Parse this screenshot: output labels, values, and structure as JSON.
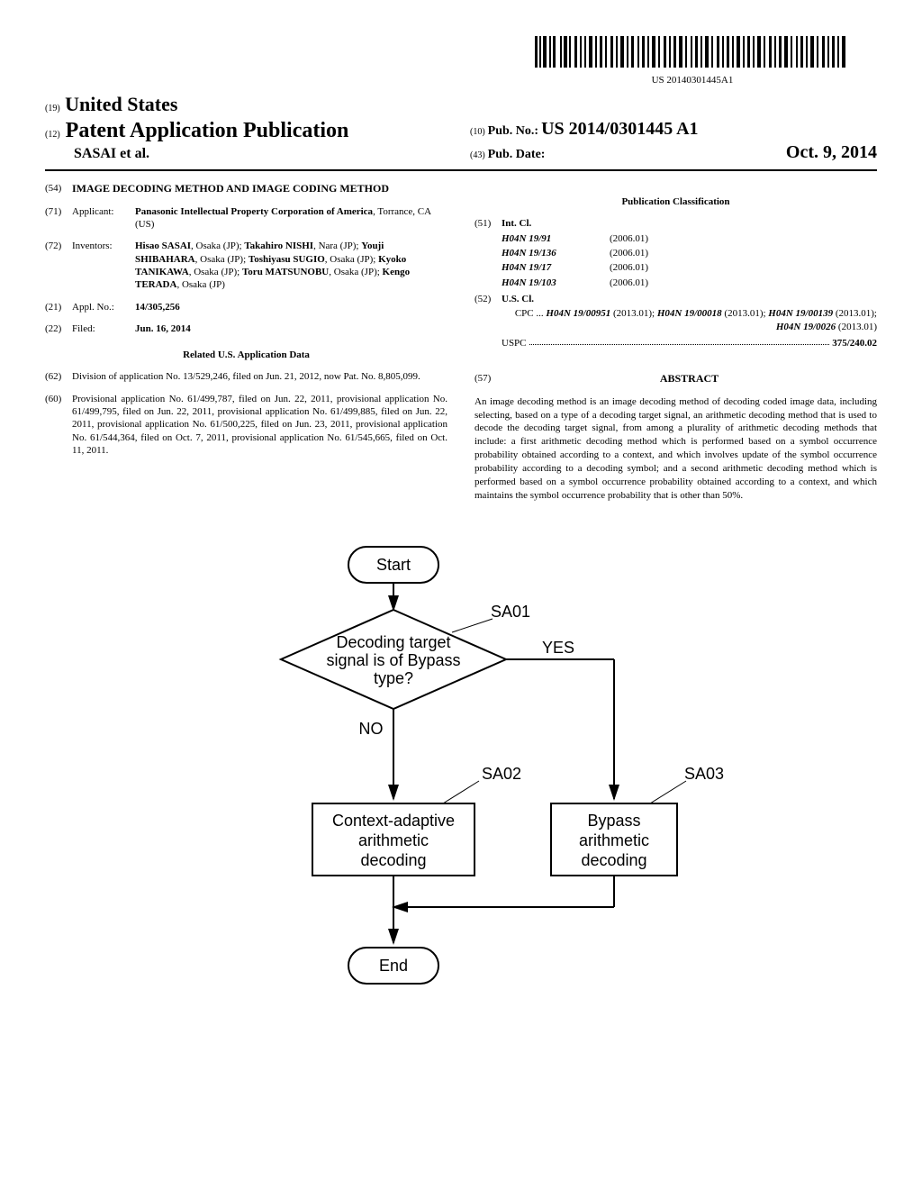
{
  "barcode_text": "US 20140301445A1",
  "header": {
    "country_num": "(19)",
    "country": "United States",
    "pub_num": "(12)",
    "pub_type": "Patent Application Publication",
    "authors": "SASAI et al.",
    "pubno_num": "(10)",
    "pubno_label": "Pub. No.:",
    "pubno": "US 2014/0301445 A1",
    "pubdate_num": "(43)",
    "pubdate_label": "Pub. Date:",
    "pubdate": "Oct. 9, 2014"
  },
  "fields": {
    "title_num": "(54)",
    "title": "IMAGE DECODING METHOD AND IMAGE CODING METHOD",
    "applicant_num": "(71)",
    "applicant_label": "Applicant:",
    "applicant": "Panasonic Intellectual Property Corporation of America",
    "applicant_loc": ", Torrance, CA (US)",
    "inventors_num": "(72)",
    "inventors_label": "Inventors:",
    "inventors": "Hisao SASAI, Osaka (JP); Takahiro NISHI, Nara (JP); Youji SHIBAHARA, Osaka (JP); Toshiyasu SUGIO, Osaka (JP); Kyoko TANIKAWA, Osaka (JP); Toru MATSUNOBU, Osaka (JP); Kengo TERADA, Osaka (JP)",
    "appl_num": "(21)",
    "appl_label": "Appl. No.:",
    "appl": "14/305,256",
    "filed_num": "(22)",
    "filed_label": "Filed:",
    "filed": "Jun. 16, 2014",
    "related_heading": "Related U.S. Application Data",
    "div_num": "(62)",
    "div_text": "Division of application No. 13/529,246, filed on Jun. 21, 2012, now Pat. No. 8,805,099.",
    "prov_num": "(60)",
    "prov_text": "Provisional application No. 61/499,787, filed on Jun. 22, 2011, provisional application No. 61/499,795, filed on Jun. 22, 2011, provisional application No. 61/499,885, filed on Jun. 22, 2011, provisional application No. 61/500,225, filed on Jun. 23, 2011, provisional application No. 61/544,364, filed on Oct. 7, 2011, provisional application No. 61/545,665, filed on Oct. 11, 2011."
  },
  "classification": {
    "heading": "Publication Classification",
    "intcl_num": "(51)",
    "intcl_label": "Int. Cl.",
    "intcl": [
      {
        "code": "H04N 19/91",
        "date": "(2006.01)"
      },
      {
        "code": "H04N 19/136",
        "date": "(2006.01)"
      },
      {
        "code": "H04N 19/17",
        "date": "(2006.01)"
      },
      {
        "code": "H04N 19/103",
        "date": "(2006.01)"
      }
    ],
    "uscl_num": "(52)",
    "uscl_label": "U.S. Cl.",
    "cpc_label": "CPC",
    "cpc_text": "H04N 19/00951 (2013.01); H04N 19/00018 (2013.01); H04N 19/00139 (2013.01); H04N 19/0026 (2013.01)",
    "uspc_label": "USPC",
    "uspc": "375/240.02"
  },
  "abstract": {
    "num": "(57)",
    "label": "ABSTRACT",
    "text": "An image decoding method is an image decoding method of decoding coded image data, including selecting, based on a type of a decoding target signal, an arithmetic decoding method that is used to decode the decoding target signal, from among a plurality of arithmetic decoding methods that include: a first arithmetic decoding method which is performed based on a symbol occurrence probability obtained according to a context, and which involves update of the symbol occurrence probability according to a decoding symbol; and a second arithmetic decoding method which is performed based on a symbol occurrence probability obtained according to a context, and which maintains the symbol occurrence probability that is other than 50%."
  },
  "flowchart": {
    "start": "Start",
    "sa01_label": "SA01",
    "sa01_text1": "Decoding target",
    "sa01_text2": "signal is of Bypass",
    "sa01_text3": "type?",
    "yes": "YES",
    "no": "NO",
    "sa02_label": "SA02",
    "sa02_text1": "Context-adaptive",
    "sa02_text2": "arithmetic",
    "sa02_text3": "decoding",
    "sa03_label": "SA03",
    "sa03_text1": "Bypass",
    "sa03_text2": "arithmetic",
    "sa03_text3": "decoding",
    "end": "End"
  }
}
